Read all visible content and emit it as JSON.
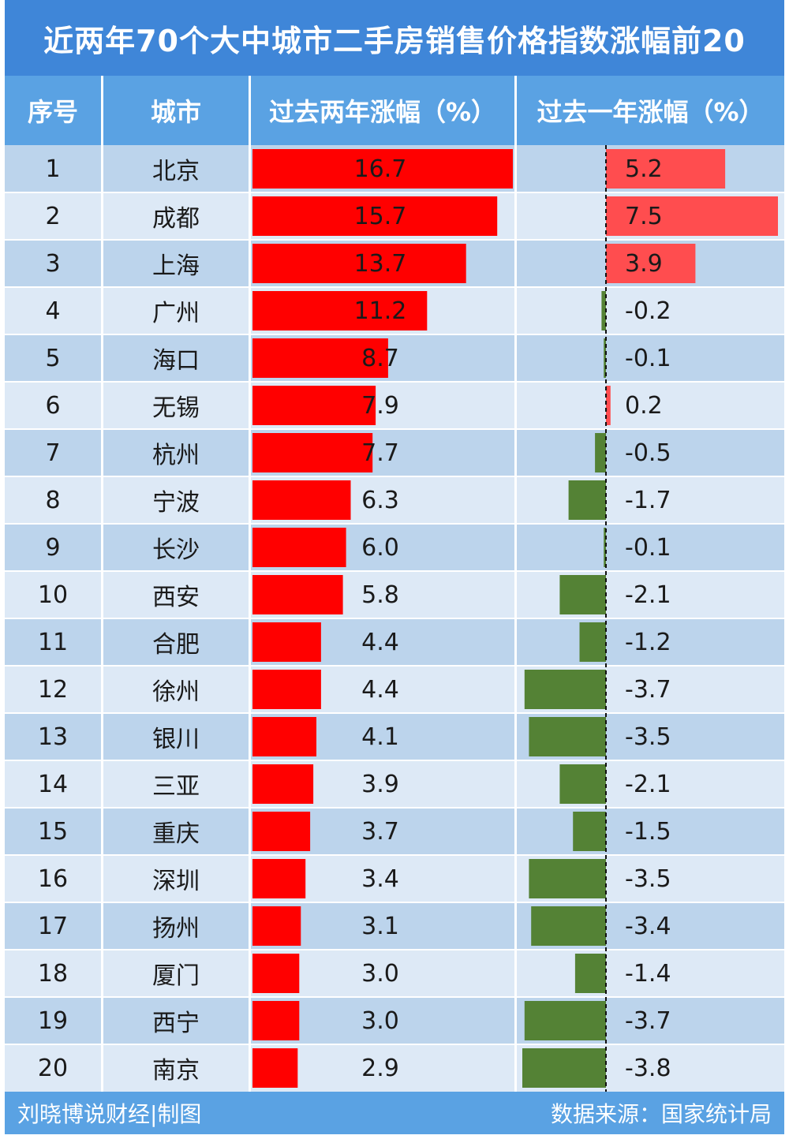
{
  "title": "近两年70个大中城市二手房销售价格指数涨幅前20",
  "headers": {
    "rank": "序号",
    "city": "城市",
    "two_year": "过去两年涨幅（%）",
    "one_year": "过去一年涨幅（%）"
  },
  "footer": {
    "left": "刘晓博说财经|制图",
    "right": "数据来源：国家统计局"
  },
  "colors": {
    "title_bg": "#3f86d8",
    "header_bg": "#5aa2e3",
    "row_odd": "#bcd4ec",
    "row_even": "#dde9f6",
    "bar_two_year": "#ff0000",
    "bar_one_year_positive": "#ff4d4f",
    "bar_one_year_negative": "#548235"
  },
  "chart_data": {
    "type": "table",
    "columns": [
      "序号",
      "城市",
      "过去两年涨幅（%）",
      "过去一年涨幅（%）"
    ],
    "ranks": [
      "1",
      "2",
      "3",
      "4",
      "5",
      "6",
      "7",
      "8",
      "9",
      "10",
      "11",
      "12",
      "13",
      "14",
      "15",
      "16",
      "17",
      "18",
      "19",
      "20"
    ],
    "cities": [
      "北京",
      "成都",
      "上海",
      "广州",
      "海口",
      "无锡",
      "杭州",
      "宁波",
      "长沙",
      "西安",
      "合肥",
      "徐州",
      "银川",
      "三亚",
      "重庆",
      "深圳",
      "扬州",
      "厦门",
      "西宁",
      "南京"
    ],
    "two_year": [
      16.7,
      15.7,
      13.7,
      11.2,
      8.7,
      7.9,
      7.7,
      6.3,
      6.0,
      5.8,
      4.4,
      4.4,
      4.1,
      3.9,
      3.7,
      3.4,
      3.1,
      3.0,
      3.0,
      2.9
    ],
    "two_year_labels": [
      "16.7",
      "15.7",
      "13.7",
      "11.2",
      "8.7",
      "7.9",
      "7.7",
      "6.3",
      "6.0",
      "5.8",
      "4.4",
      "4.4",
      "4.1",
      "3.9",
      "3.7",
      "3.4",
      "3.1",
      "3.0",
      "3.0",
      "2.9"
    ],
    "one_year": [
      5.2,
      7.5,
      3.9,
      -0.2,
      -0.1,
      0.2,
      -0.5,
      -1.7,
      -0.1,
      -2.1,
      -1.2,
      -3.7,
      -3.5,
      -2.1,
      -1.5,
      -3.5,
      -3.4,
      -1.4,
      -3.7,
      -3.8
    ],
    "one_year_labels": [
      "5.2",
      "7.5",
      "3.9",
      "-0.2",
      "-0.1",
      "0.2",
      "-0.5",
      "-1.7",
      "-0.1",
      "-2.1",
      "-1.2",
      "-3.7",
      "-3.5",
      "-2.1",
      "-1.5",
      "-3.5",
      "-3.4",
      "-1.4",
      "-3.7",
      "-3.8"
    ],
    "two_year_range": [
      0,
      16.7
    ],
    "one_year_range": [
      -3.8,
      7.5
    ]
  }
}
